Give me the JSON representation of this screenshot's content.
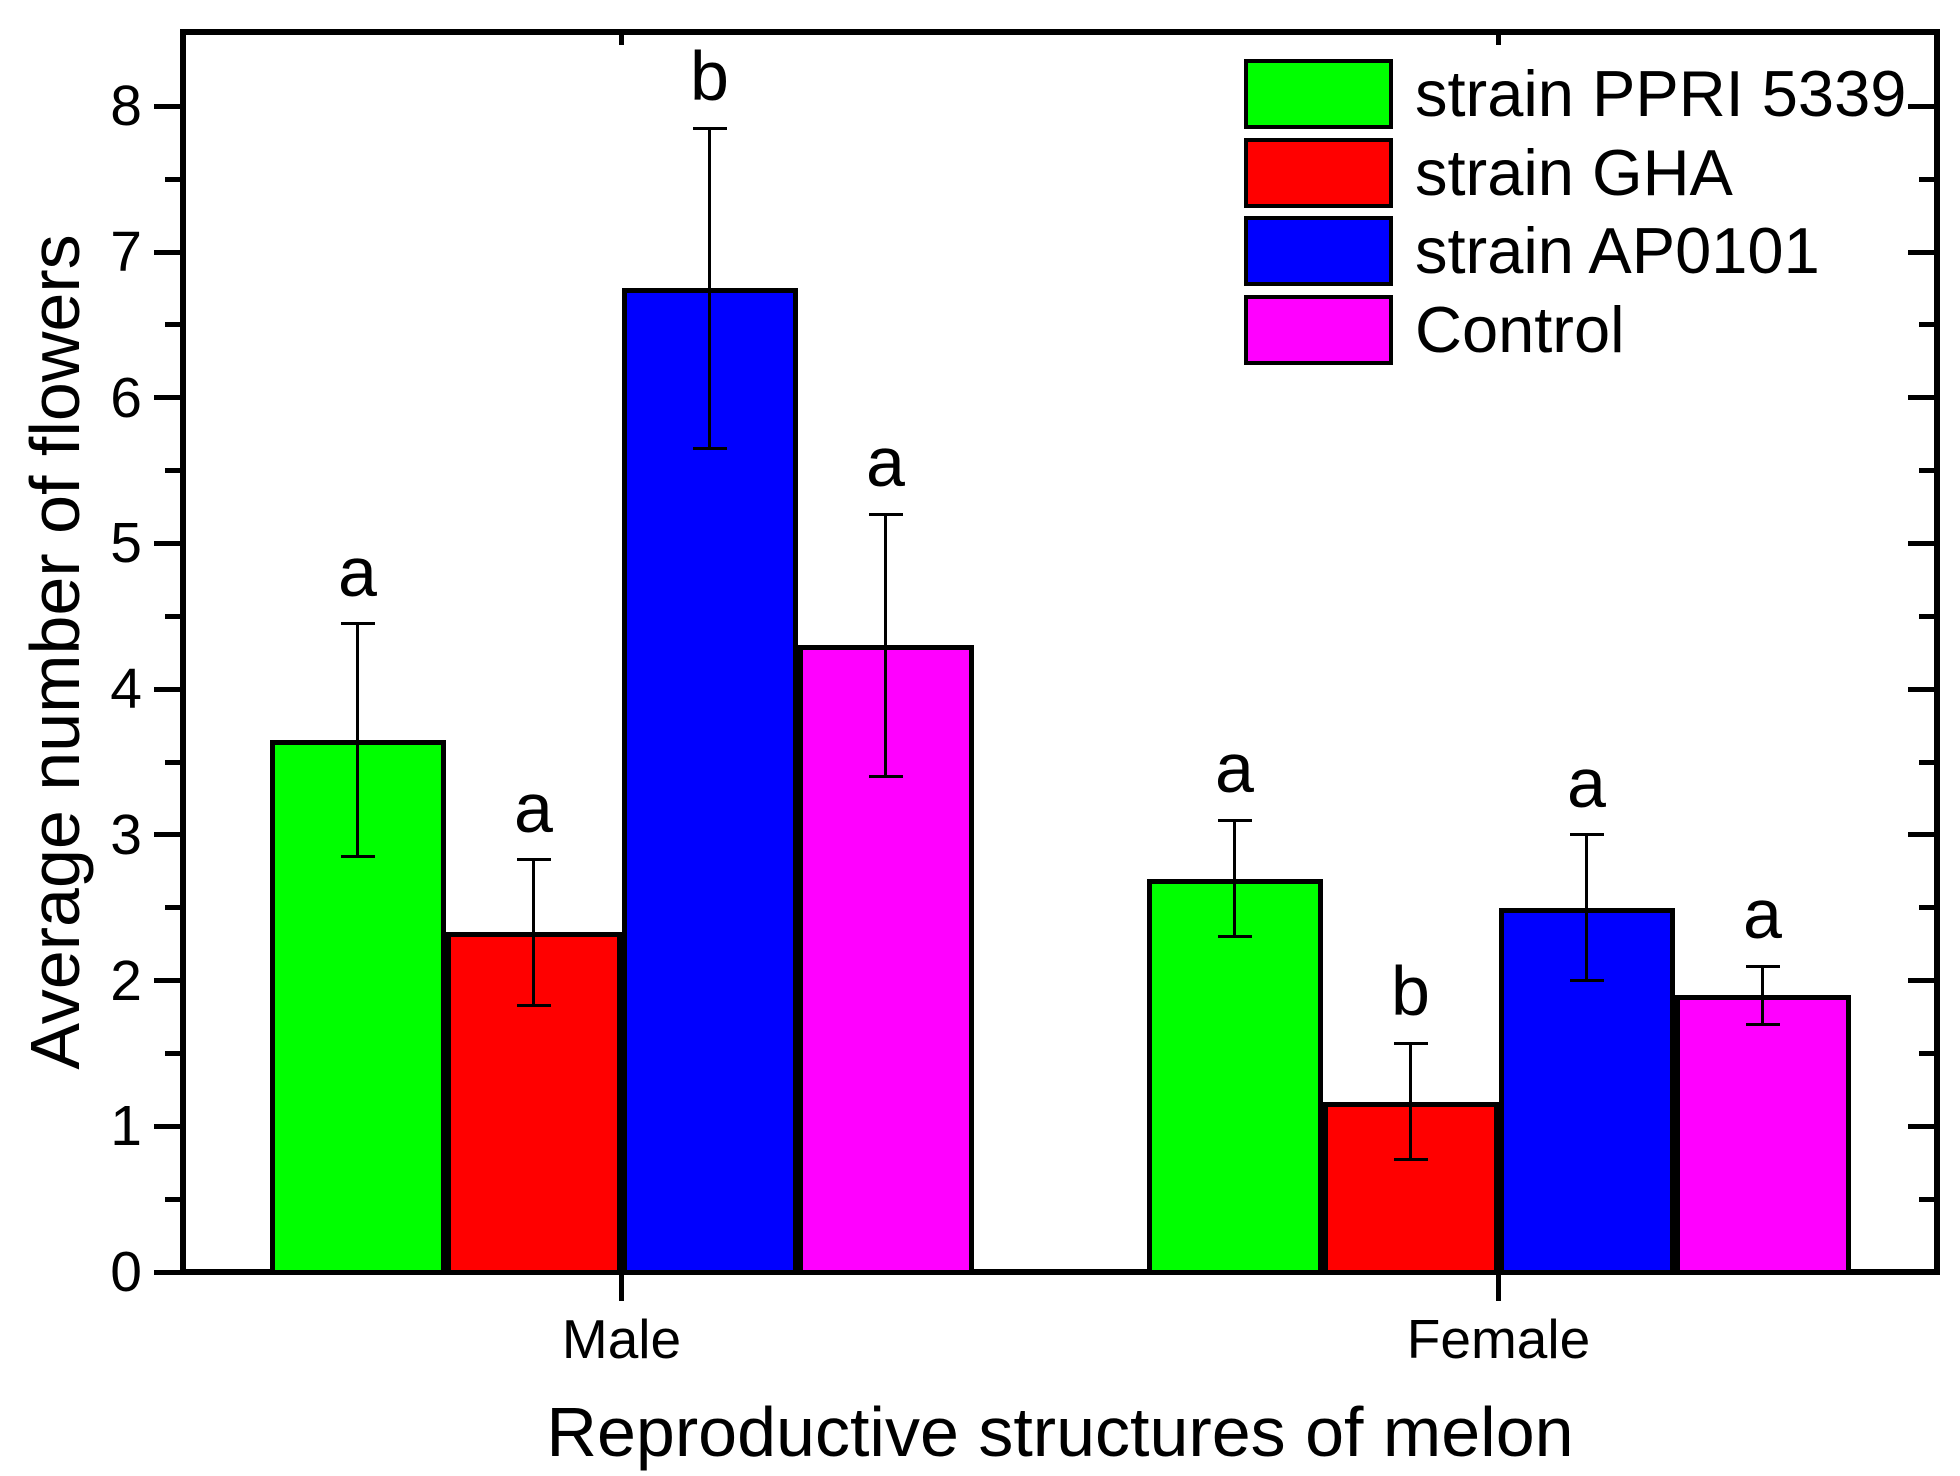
{
  "figure": {
    "background": "#ffffff",
    "frame_color": "#000000"
  },
  "chart_data": {
    "type": "bar",
    "title": "",
    "xlabel": "Reproductive structures of melon",
    "ylabel": "Average number of flowers",
    "categories": [
      "Male",
      "Female"
    ],
    "ylim": [
      0,
      8.5
    ],
    "yticks": [
      0,
      1,
      2,
      3,
      4,
      5,
      6,
      7,
      8
    ],
    "minor_ytick_interval": 0.5,
    "grid": false,
    "error_bars": true,
    "legend_position": "top-right-inside",
    "series": [
      {
        "name": "strain PPRI 5339",
        "color": "#00ff00",
        "values": [
          3.65,
          2.7
        ],
        "errors": [
          0.8,
          0.4
        ],
        "sig_letters": [
          "a",
          "a"
        ]
      },
      {
        "name": "strain GHA",
        "color": "#ff0000",
        "values": [
          2.33,
          1.17
        ],
        "errors": [
          0.5,
          0.4
        ],
        "sig_letters": [
          "a",
          "b"
        ]
      },
      {
        "name": "strain AP0101",
        "color": "#0000ff",
        "values": [
          6.75,
          2.5
        ],
        "errors": [
          1.1,
          0.5
        ],
        "sig_letters": [
          "b",
          "a"
        ]
      },
      {
        "name": "Control",
        "color": "#ff00ff",
        "values": [
          4.3,
          1.9
        ],
        "errors": [
          0.9,
          0.2
        ],
        "sig_letters": [
          "a",
          "a"
        ]
      }
    ]
  }
}
